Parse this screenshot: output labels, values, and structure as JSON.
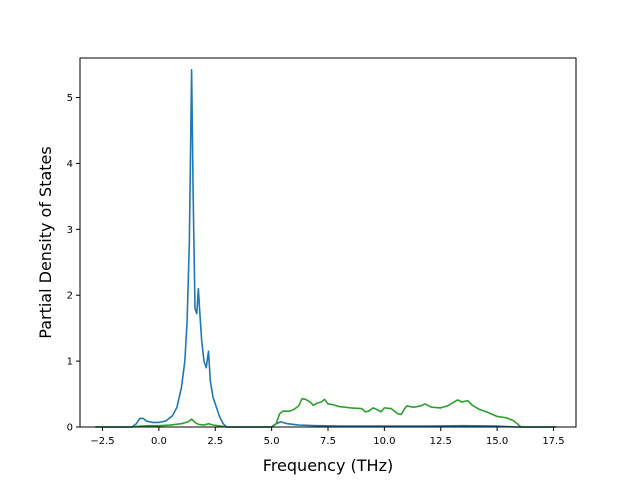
{
  "chart_data": {
    "type": "line",
    "title": "",
    "xlabel": "Frequency (THz)",
    "ylabel": "Partial Density of States",
    "xlim": [
      -3.5,
      18.5
    ],
    "ylim": [
      0,
      5.6
    ],
    "xticks": [
      -2.5,
      0.0,
      2.5,
      5.0,
      7.5,
      10.0,
      12.5,
      15.0,
      17.5
    ],
    "xtick_labels": [
      "−2.5",
      "0.0",
      "2.5",
      "5.0",
      "7.5",
      "10.0",
      "12.5",
      "15.0",
      "17.5"
    ],
    "yticks": [
      0,
      1,
      2,
      3,
      4,
      5
    ],
    "ytick_labels": [
      "0",
      "1",
      "2",
      "3",
      "4",
      "5"
    ],
    "grid": false,
    "legend": "none",
    "series": [
      {
        "color": "#1f77b4",
        "points": [
          [
            -2.8,
            0.0
          ],
          [
            -1.2,
            0.0
          ],
          [
            -1.0,
            0.05
          ],
          [
            -0.85,
            0.13
          ],
          [
            -0.7,
            0.13
          ],
          [
            -0.55,
            0.09
          ],
          [
            -0.3,
            0.07
          ],
          [
            0.0,
            0.07
          ],
          [
            0.3,
            0.09
          ],
          [
            0.6,
            0.17
          ],
          [
            0.8,
            0.3
          ],
          [
            1.0,
            0.6
          ],
          [
            1.15,
            1.0
          ],
          [
            1.25,
            1.6
          ],
          [
            1.35,
            2.8
          ],
          [
            1.45,
            5.42
          ],
          [
            1.52,
            3.5
          ],
          [
            1.6,
            1.8
          ],
          [
            1.68,
            1.72
          ],
          [
            1.75,
            2.1
          ],
          [
            1.82,
            1.7
          ],
          [
            1.9,
            1.3
          ],
          [
            2.0,
            1.0
          ],
          [
            2.1,
            0.9
          ],
          [
            2.2,
            1.15
          ],
          [
            2.28,
            0.7
          ],
          [
            2.4,
            0.45
          ],
          [
            2.55,
            0.3
          ],
          [
            2.7,
            0.15
          ],
          [
            2.85,
            0.05
          ],
          [
            3.0,
            0.0
          ],
          [
            5.0,
            0.0
          ],
          [
            5.15,
            0.04
          ],
          [
            5.4,
            0.08
          ],
          [
            5.7,
            0.05
          ],
          [
            6.2,
            0.03
          ],
          [
            7.0,
            0.02
          ],
          [
            8.0,
            0.015
          ],
          [
            10.0,
            0.015
          ],
          [
            12.0,
            0.015
          ],
          [
            13.5,
            0.02
          ],
          [
            15.0,
            0.015
          ],
          [
            15.8,
            0.0
          ],
          [
            17.6,
            0.0
          ]
        ]
      },
      {
        "color": "#2ca02c",
        "points": [
          [
            -2.8,
            0.0
          ],
          [
            -1.2,
            0.0
          ],
          [
            -0.9,
            0.01
          ],
          [
            -0.5,
            0.02
          ],
          [
            0.0,
            0.02
          ],
          [
            0.5,
            0.03
          ],
          [
            1.0,
            0.05
          ],
          [
            1.3,
            0.08
          ],
          [
            1.45,
            0.12
          ],
          [
            1.6,
            0.07
          ],
          [
            1.75,
            0.04
          ],
          [
            2.0,
            0.03
          ],
          [
            2.2,
            0.05
          ],
          [
            2.4,
            0.03
          ],
          [
            2.8,
            0.01
          ],
          [
            3.0,
            0.0
          ],
          [
            5.0,
            0.0
          ],
          [
            5.2,
            0.05
          ],
          [
            5.35,
            0.2
          ],
          [
            5.5,
            0.24
          ],
          [
            5.8,
            0.24
          ],
          [
            6.0,
            0.27
          ],
          [
            6.2,
            0.32
          ],
          [
            6.35,
            0.43
          ],
          [
            6.5,
            0.42
          ],
          [
            6.7,
            0.38
          ],
          [
            6.85,
            0.33
          ],
          [
            7.0,
            0.36
          ],
          [
            7.2,
            0.38
          ],
          [
            7.35,
            0.42
          ],
          [
            7.5,
            0.35
          ],
          [
            7.7,
            0.34
          ],
          [
            8.0,
            0.31
          ],
          [
            8.5,
            0.29
          ],
          [
            9.0,
            0.28
          ],
          [
            9.15,
            0.23
          ],
          [
            9.3,
            0.24
          ],
          [
            9.5,
            0.29
          ],
          [
            9.7,
            0.26
          ],
          [
            9.85,
            0.23
          ],
          [
            10.0,
            0.29
          ],
          [
            10.3,
            0.28
          ],
          [
            10.6,
            0.2
          ],
          [
            10.75,
            0.19
          ],
          [
            10.9,
            0.28
          ],
          [
            11.0,
            0.32
          ],
          [
            11.3,
            0.3
          ],
          [
            11.6,
            0.32
          ],
          [
            11.8,
            0.35
          ],
          [
            12.1,
            0.3
          ],
          [
            12.5,
            0.29
          ],
          [
            12.8,
            0.32
          ],
          [
            13.1,
            0.38
          ],
          [
            13.25,
            0.41
          ],
          [
            13.45,
            0.38
          ],
          [
            13.7,
            0.4
          ],
          [
            13.9,
            0.33
          ],
          [
            14.2,
            0.27
          ],
          [
            14.6,
            0.22
          ],
          [
            15.0,
            0.16
          ],
          [
            15.4,
            0.14
          ],
          [
            15.7,
            0.1
          ],
          [
            15.9,
            0.05
          ],
          [
            16.05,
            0.0
          ],
          [
            17.6,
            0.0
          ]
        ]
      }
    ]
  }
}
